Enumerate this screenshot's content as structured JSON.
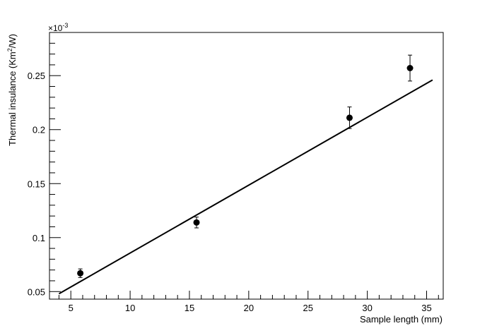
{
  "chart_data": {
    "type": "scatter",
    "xlabel": "Sample length (mm)",
    "ylabel_main": "Thermal insulance (Km",
    "ylabel_sup": "2",
    "ylabel_tail": "/W)",
    "y_multiplier_base": "×10",
    "y_multiplier_exp": "-3",
    "xlim": [
      3.2,
      36.4
    ],
    "ylim": [
      0.043,
      0.29
    ],
    "x_ticks_major": [
      5,
      10,
      15,
      20,
      25,
      30,
      35
    ],
    "x_tick_labels": [
      "5",
      "10",
      "15",
      "20",
      "25",
      "30",
      "35"
    ],
    "y_ticks_major": [
      0.05,
      0.1,
      0.15,
      0.2,
      0.25
    ],
    "y_tick_labels": [
      "0.05",
      "0.1",
      "0.15",
      "0.2",
      "0.25"
    ],
    "series": [
      {
        "kind": "points",
        "x": [
          5.8,
          15.6,
          28.5,
          33.6
        ],
        "y": [
          0.067,
          0.114,
          0.211,
          0.257
        ],
        "yerr": [
          0.004,
          0.005,
          0.01,
          0.012
        ]
      },
      {
        "kind": "fit-line",
        "x": [
          4.0,
          35.5
        ],
        "y": [
          0.048,
          0.246
        ]
      }
    ],
    "grid": false,
    "legend": "none"
  }
}
